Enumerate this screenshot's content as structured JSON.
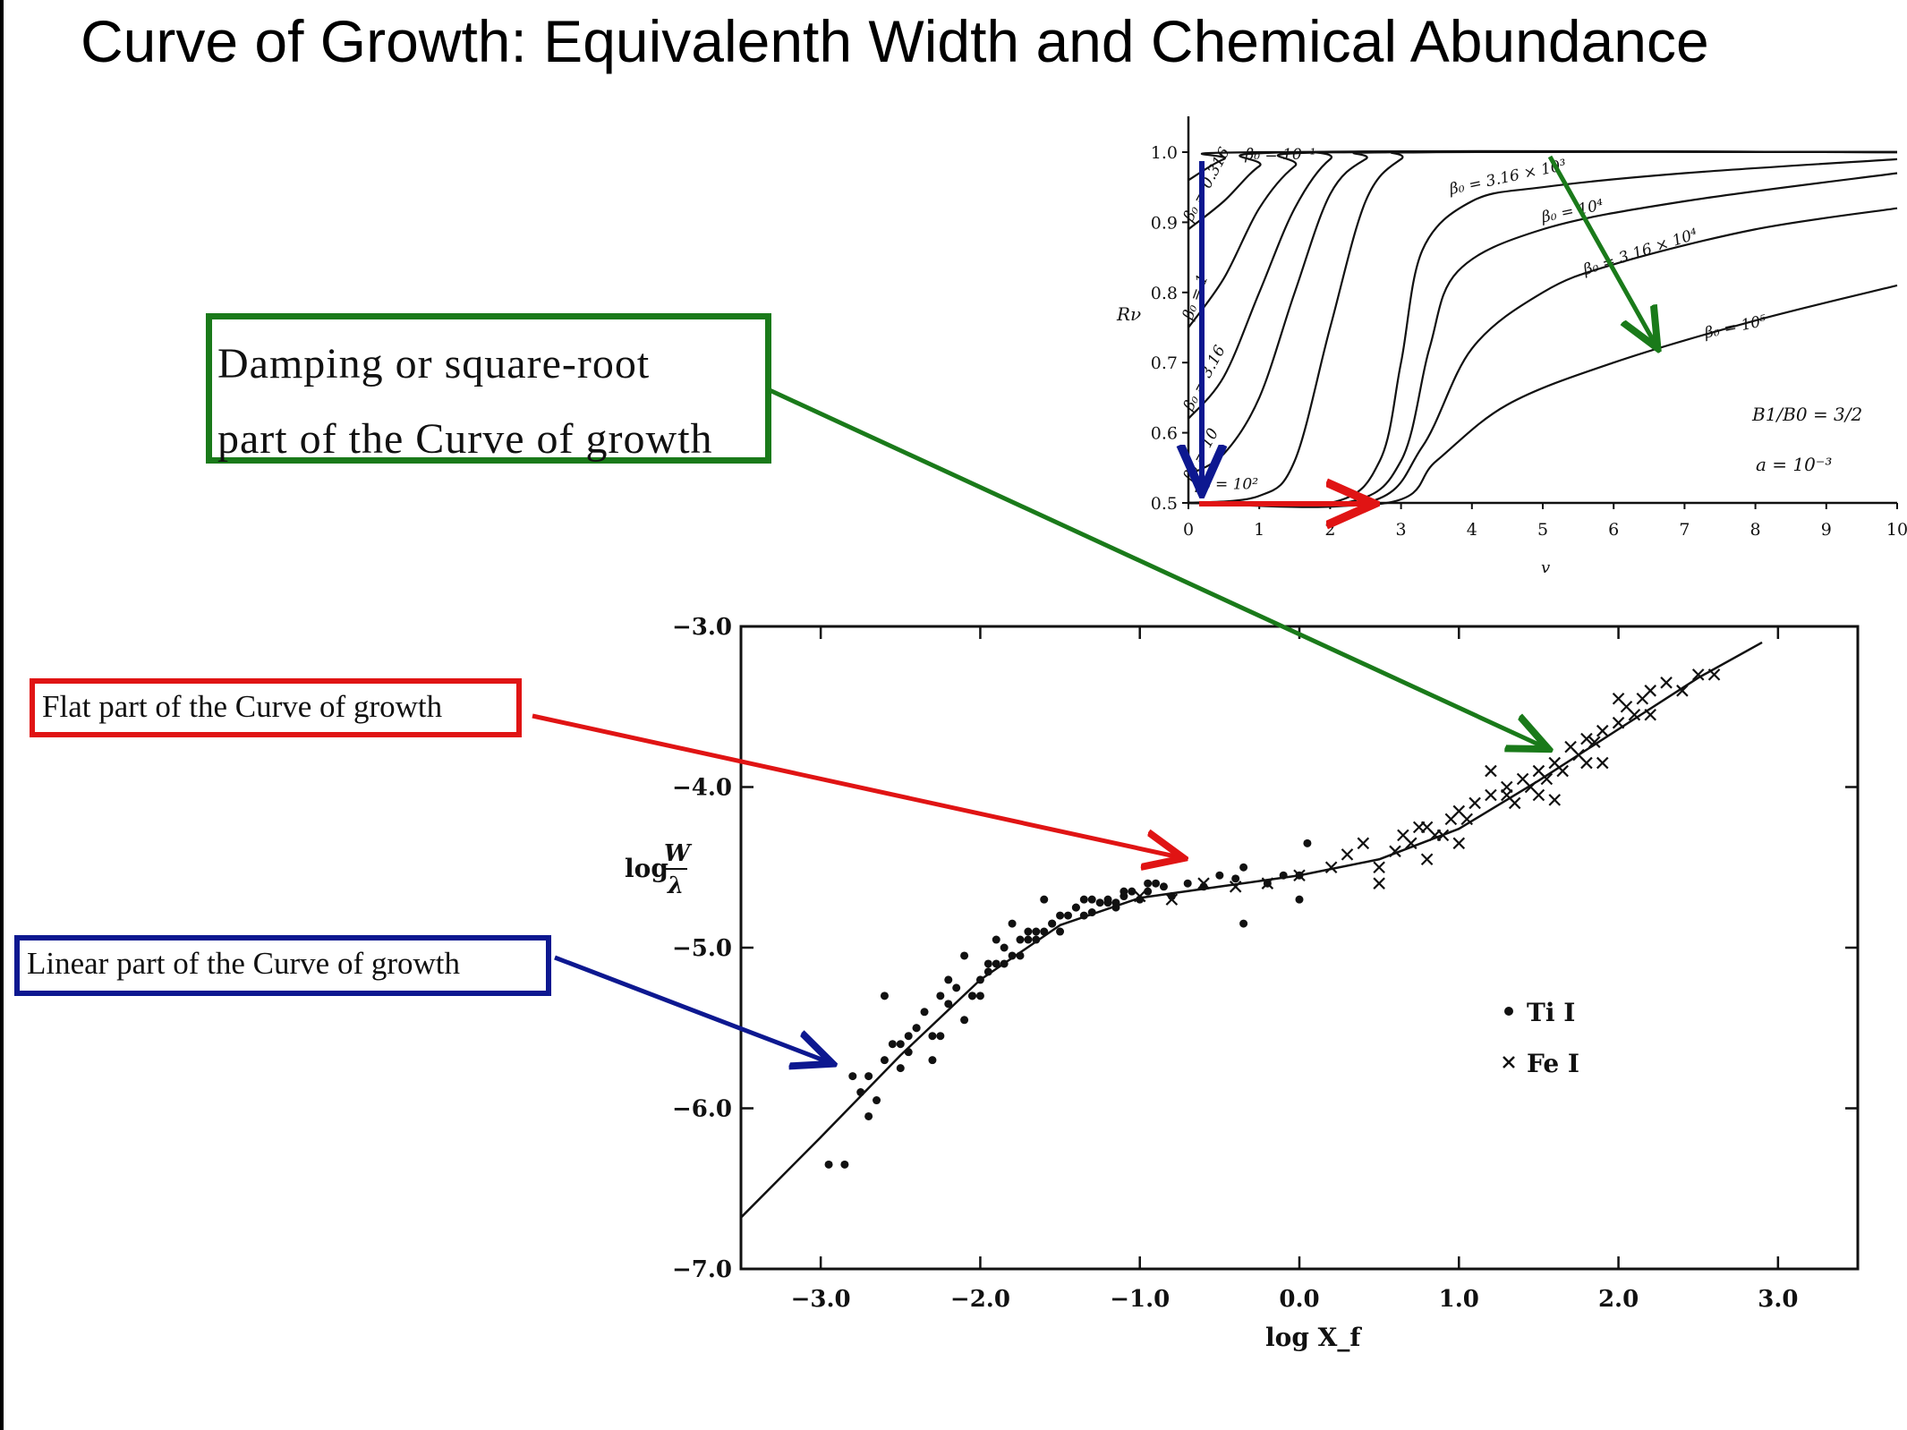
{
  "slide": {
    "title": "Curve of Growth: Equivalenth Width and Chemical Abundance"
  },
  "callouts": {
    "damping_line1": "Damping or square-root",
    "damping_line2": "part of the Curve of growth",
    "flat": "Flat part of the Curve of growth",
    "linear": "Linear part of the Curve of growth"
  },
  "colors": {
    "green": "#1a7a1a",
    "red": "#e01414",
    "blue": "#0d1890"
  },
  "chart_data": [
    {
      "type": "line",
      "title": "",
      "xlabel": "v",
      "ylabel": "Rν",
      "xlim": [
        0,
        10
      ],
      "ylim": [
        0.5,
        1.0
      ],
      "x_ticks": [
        "0",
        "1",
        "2",
        "3",
        "4",
        "5",
        "6",
        "7",
        "8",
        "9",
        "10"
      ],
      "y_ticks": [
        "0.5",
        "0.6",
        "0.7",
        "0.8",
        "0.9",
        "1.0"
      ],
      "parameters": [
        "B1/B0 = 3/2",
        "a = 10⁻³"
      ],
      "series": [
        {
          "name": "β₀ = 10⁻¹",
          "x": [
            0,
            0.5,
            1,
            10
          ],
          "y": [
            0.96,
            0.99,
            1.0,
            1.0
          ]
        },
        {
          "name": "β₀ = 0.316",
          "x": [
            0,
            0.5,
            1,
            1.5,
            10
          ],
          "y": [
            0.89,
            0.93,
            0.98,
            1.0,
            1.0
          ]
        },
        {
          "name": "β₀ = 1",
          "x": [
            0,
            0.5,
            1,
            1.5,
            2,
            10
          ],
          "y": [
            0.75,
            0.82,
            0.92,
            0.98,
            1.0,
            1.0
          ]
        },
        {
          "name": "β₀ = 3.16",
          "x": [
            0,
            0.5,
            1,
            1.5,
            2,
            2.5,
            10
          ],
          "y": [
            0.62,
            0.68,
            0.8,
            0.92,
            0.99,
            1.0,
            1.0
          ]
        },
        {
          "name": "β₀ = 10",
          "x": [
            0,
            0.5,
            1,
            1.5,
            2,
            2.5,
            3,
            10
          ],
          "y": [
            0.54,
            0.57,
            0.65,
            0.8,
            0.94,
            0.99,
            1.0,
            1.0
          ]
        },
        {
          "name": "β₀ = 10²",
          "x": [
            0,
            1,
            1.5,
            2,
            2.5,
            3,
            3.5,
            10
          ],
          "y": [
            0.5,
            0.51,
            0.56,
            0.75,
            0.93,
            0.99,
            1.0,
            1.0
          ]
        },
        {
          "name": "β₀ = 3.16 × 10³",
          "x": [
            0,
            2,
            2.7,
            3,
            3.3,
            4,
            5,
            7,
            10
          ],
          "y": [
            0.5,
            0.5,
            0.56,
            0.7,
            0.86,
            0.93,
            0.95,
            0.97,
            0.99
          ]
        },
        {
          "name": "β₀ = 10⁴",
          "x": [
            0,
            2.2,
            3,
            3.4,
            3.8,
            5,
            7,
            10
          ],
          "y": [
            0.5,
            0.5,
            0.56,
            0.72,
            0.83,
            0.89,
            0.93,
            0.97
          ]
        },
        {
          "name": "β₀ = 3.16 × 10⁴",
          "x": [
            0,
            2.5,
            3.3,
            4,
            5,
            6,
            8,
            10
          ],
          "y": [
            0.5,
            0.5,
            0.58,
            0.72,
            0.8,
            0.84,
            0.89,
            0.92
          ]
        },
        {
          "name": "β₀ = 10⁵",
          "x": [
            0,
            2.8,
            3.5,
            4.5,
            6,
            8,
            10
          ],
          "y": [
            0.5,
            0.5,
            0.56,
            0.64,
            0.7,
            0.76,
            0.81
          ]
        }
      ]
    },
    {
      "type": "scatter",
      "title": "",
      "xlabel": "log X_f",
      "ylabel": "log W/λ",
      "xlim": [
        -3.5,
        3.5
      ],
      "ylim": [
        -7.0,
        -3.0
      ],
      "x_ticks": [
        "−3.0",
        "−2.0",
        "−1.0",
        "0.0",
        "1.0",
        "2.0",
        "3.0"
      ],
      "y_ticks": [
        "−3.0",
        "−4.0",
        "−5.0",
        "−6.0",
        "−7.0"
      ],
      "legend": [
        "Ti I",
        "Fe I"
      ],
      "legend_position": "right",
      "fit_curve": {
        "x": [
          -3.5,
          -3.0,
          -2.5,
          -2.0,
          -1.5,
          -1.0,
          -0.5,
          0.0,
          0.5,
          1.0,
          1.5,
          2.0,
          2.5,
          2.9
        ],
        "y": [
          -6.68,
          -6.18,
          -5.67,
          -5.2,
          -4.86,
          -4.69,
          -4.62,
          -4.55,
          -4.45,
          -4.26,
          -3.96,
          -3.64,
          -3.32,
          -3.1
        ]
      },
      "series": [
        {
          "name": "Ti I",
          "marker": "dot",
          "x": [
            -2.95,
            -2.85,
            -2.8,
            -2.75,
            -2.7,
            -2.65,
            -2.6,
            -2.55,
            -2.5,
            -2.45,
            -2.4,
            -2.35,
            -2.3,
            -2.25,
            -2.2,
            -2.15,
            -2.1,
            -2.05,
            -2.0,
            -1.95,
            -1.9,
            -1.85,
            -1.8,
            -1.75,
            -1.7,
            -1.65,
            -1.6,
            -1.55,
            -1.5,
            -1.45,
            -1.4,
            -1.35,
            -1.3,
            -1.25,
            -1.2,
            -1.15,
            -1.1,
            -1.05,
            -1.0,
            -0.95,
            -0.9,
            -0.85,
            -0.8,
            -0.7,
            -0.6,
            -0.5,
            -0.4,
            -0.35,
            -0.2,
            -0.1,
            0.0,
            0.05,
            -2.6,
            -2.5,
            -2.3,
            -2.2,
            -2.0,
            -1.9,
            -1.8,
            -1.7,
            -1.6,
            -1.5,
            -1.4,
            -1.3,
            -1.2,
            -1.1,
            -2.4,
            -2.1,
            -1.95,
            -1.75,
            -1.55,
            -1.35,
            -1.15,
            -0.95,
            -2.7,
            -2.45,
            -2.25,
            -2.05,
            -1.85,
            -1.65,
            -0.35,
            0.0
          ],
          "y": [
            -6.35,
            -6.35,
            -5.8,
            -5.9,
            -6.05,
            -5.95,
            -5.7,
            -5.6,
            -5.75,
            -5.55,
            -5.5,
            -5.4,
            -5.55,
            -5.3,
            -5.35,
            -5.25,
            -5.05,
            -5.3,
            -5.2,
            -5.15,
            -5.1,
            -5.0,
            -5.05,
            -4.95,
            -4.9,
            -4.95,
            -4.9,
            -4.85,
            -4.8,
            -4.8,
            -4.75,
            -4.8,
            -4.7,
            -4.72,
            -4.7,
            -4.75,
            -4.68,
            -4.65,
            -4.7,
            -4.65,
            -4.6,
            -4.62,
            -4.68,
            -4.6,
            -4.62,
            -4.55,
            -4.57,
            -4.85,
            -4.6,
            -4.55,
            -4.55,
            -4.35,
            -5.3,
            -5.6,
            -5.7,
            -5.2,
            -5.3,
            -4.95,
            -4.85,
            -4.95,
            -4.7,
            -4.9,
            -4.75,
            -4.78,
            -4.72,
            -4.65,
            -5.5,
            -5.45,
            -5.1,
            -5.05,
            -4.85,
            -4.7,
            -4.72,
            -4.6,
            -5.8,
            -5.65,
            -5.55,
            -5.3,
            -5.1,
            -4.9,
            -4.5,
            -4.7
          ]
        },
        {
          "name": "Fe I",
          "marker": "cross",
          "x": [
            -1.0,
            -0.8,
            -0.6,
            -0.4,
            -0.2,
            0.0,
            0.2,
            0.3,
            0.4,
            0.5,
            0.6,
            0.65,
            0.7,
            0.75,
            0.8,
            0.85,
            0.9,
            0.95,
            1.0,
            1.05,
            1.1,
            1.2,
            1.3,
            1.35,
            1.4,
            1.45,
            1.5,
            1.55,
            1.6,
            1.65,
            1.7,
            1.75,
            1.8,
            1.85,
            1.9,
            2.0,
            2.05,
            2.1,
            2.15,
            2.2,
            2.3,
            2.4,
            2.5,
            2.6,
            0.5,
            0.8,
            1.0,
            1.2,
            1.5,
            1.8,
            2.0,
            2.2,
            1.3,
            1.6,
            1.9
          ],
          "y": [
            -4.68,
            -4.7,
            -4.6,
            -4.62,
            -4.6,
            -4.55,
            -4.5,
            -4.42,
            -4.35,
            -4.5,
            -4.4,
            -4.3,
            -4.35,
            -4.25,
            -4.45,
            -4.3,
            -4.3,
            -4.2,
            -4.15,
            -4.2,
            -4.1,
            -4.05,
            -4.0,
            -4.1,
            -3.95,
            -4.0,
            -3.9,
            -3.95,
            -3.85,
            -3.9,
            -3.75,
            -3.8,
            -3.7,
            -3.72,
            -3.65,
            -3.6,
            -3.5,
            -3.55,
            -3.45,
            -3.4,
            -3.35,
            -3.4,
            -3.3,
            -3.3,
            -4.6,
            -4.25,
            -4.35,
            -3.9,
            -4.05,
            -3.85,
            -3.45,
            -3.55,
            -4.05,
            -4.08,
            -3.85
          ]
        }
      ]
    }
  ]
}
